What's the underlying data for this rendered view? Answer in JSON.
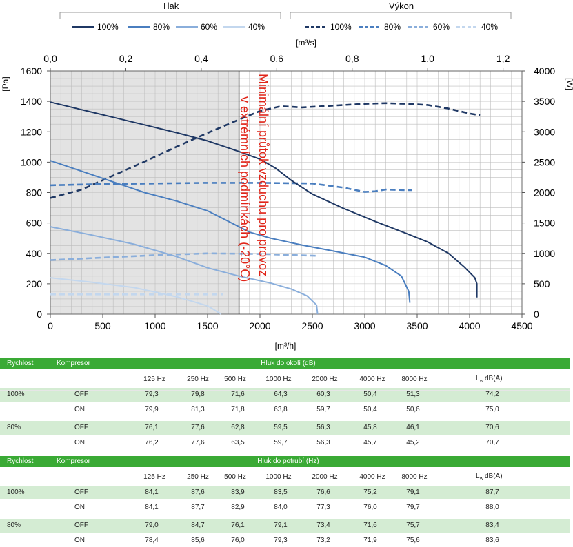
{
  "colors": {
    "c100": "#1f3864",
    "c80": "#4a7ebf",
    "c60": "#8aaedb",
    "c40": "#c3d7ee",
    "note": "#e02418",
    "green": "#3aaa35",
    "band": "#d4ecd3",
    "shade": "#e3e3e3"
  },
  "legend": {
    "tlak": {
      "title": "Tlak",
      "items": [
        "100%",
        "80%",
        "60%",
        "40%"
      ]
    },
    "vykon": {
      "title": "Výkon",
      "items": [
        "100%",
        "80%",
        "60%",
        "40%"
      ]
    }
  },
  "chart_data": {
    "type": "line",
    "x_bottom": {
      "label": "[m³/h]",
      "range": [
        0,
        4500
      ],
      "ticks": [
        "0",
        "500",
        "1000",
        "1500",
        "2000",
        "2500",
        "3000",
        "3500",
        "4000",
        "4500"
      ]
    },
    "x_top": {
      "label": "[m³/s]",
      "range": [
        0,
        1.25
      ],
      "ticks": [
        "0,0",
        "0,2",
        "0,4",
        "0,6",
        "0,8",
        "1,0",
        "1,2"
      ]
    },
    "y_left": {
      "label": "[Pa]",
      "range": [
        0,
        1600
      ],
      "ticks": [
        "0",
        "200",
        "400",
        "600",
        "800",
        "1000",
        "1200",
        "1400",
        "1600"
      ]
    },
    "y_right": {
      "label": "[W]",
      "range": [
        0,
        4000
      ],
      "ticks": [
        "0",
        "500",
        "1000",
        "1500",
        "2000",
        "2500",
        "3000",
        "3500",
        "4000"
      ]
    },
    "grid": true,
    "shaded_region_x": [
      0,
      1800
    ],
    "annotation": "Minimální průtok vzduchu pro provoz v extrémních podmínkách (-20°C)",
    "pressure_series": [
      {
        "name": "100%",
        "points": [
          [
            0,
            1395
          ],
          [
            300,
            1345
          ],
          [
            600,
            1295
          ],
          [
            900,
            1245
          ],
          [
            1200,
            1195
          ],
          [
            1500,
            1140
          ],
          [
            1800,
            1070
          ],
          [
            2000,
            1020
          ],
          [
            2150,
            960
          ],
          [
            2300,
            880
          ],
          [
            2500,
            790
          ],
          [
            2800,
            695
          ],
          [
            3100,
            610
          ],
          [
            3400,
            530
          ],
          [
            3600,
            475
          ],
          [
            3800,
            400
          ],
          [
            3950,
            310
          ],
          [
            4050,
            240
          ],
          [
            4070,
            200
          ],
          [
            4070,
            110
          ]
        ]
      },
      {
        "name": "80%",
        "points": [
          [
            0,
            1010
          ],
          [
            300,
            940
          ],
          [
            600,
            870
          ],
          [
            900,
            800
          ],
          [
            1200,
            745
          ],
          [
            1500,
            680
          ],
          [
            1700,
            610
          ],
          [
            1900,
            540
          ],
          [
            2100,
            500
          ],
          [
            2400,
            455
          ],
          [
            2700,
            415
          ],
          [
            3000,
            375
          ],
          [
            3200,
            320
          ],
          [
            3350,
            250
          ],
          [
            3420,
            150
          ],
          [
            3430,
            75
          ]
        ]
      },
      {
        "name": "60%",
        "points": [
          [
            0,
            575
          ],
          [
            400,
            520
          ],
          [
            800,
            460
          ],
          [
            1200,
            380
          ],
          [
            1500,
            305
          ],
          [
            1800,
            250
          ],
          [
            2100,
            205
          ],
          [
            2300,
            165
          ],
          [
            2450,
            120
          ],
          [
            2540,
            60
          ],
          [
            2550,
            0
          ]
        ]
      },
      {
        "name": "40%",
        "points": [
          [
            0,
            240
          ],
          [
            400,
            210
          ],
          [
            800,
            175
          ],
          [
            1200,
            115
          ],
          [
            1500,
            55
          ],
          [
            1630,
            0
          ]
        ]
      }
    ],
    "power_series": [
      {
        "name": "100%",
        "points": [
          [
            0,
            1910
          ],
          [
            300,
            2050
          ],
          [
            600,
            2280
          ],
          [
            900,
            2510
          ],
          [
            1200,
            2750
          ],
          [
            1500,
            2980
          ],
          [
            1800,
            3200
          ],
          [
            2000,
            3340
          ],
          [
            2200,
            3420
          ],
          [
            2400,
            3400
          ],
          [
            2600,
            3420
          ],
          [
            2800,
            3440
          ],
          [
            3000,
            3460
          ],
          [
            3200,
            3470
          ],
          [
            3400,
            3460
          ],
          [
            3600,
            3440
          ],
          [
            3800,
            3380
          ],
          [
            4000,
            3300
          ],
          [
            4100,
            3270
          ]
        ]
      },
      {
        "name": "80%",
        "points": [
          [
            0,
            2120
          ],
          [
            500,
            2140
          ],
          [
            1000,
            2150
          ],
          [
            1500,
            2160
          ],
          [
            2000,
            2160
          ],
          [
            2500,
            2150
          ],
          [
            2800,
            2080
          ],
          [
            3000,
            2010
          ],
          [
            3100,
            2020
          ],
          [
            3200,
            2050
          ],
          [
            3400,
            2040
          ],
          [
            3450,
            2040
          ]
        ]
      },
      {
        "name": "60%",
        "points": [
          [
            0,
            890
          ],
          [
            500,
            930
          ],
          [
            1000,
            970
          ],
          [
            1500,
            1000
          ],
          [
            2000,
            990
          ],
          [
            2550,
            960
          ]
        ]
      },
      {
        "name": "40%",
        "points": [
          [
            0,
            325
          ],
          [
            500,
            325
          ],
          [
            1000,
            325
          ],
          [
            1650,
            325
          ]
        ]
      }
    ]
  },
  "table1": {
    "col_rychlost": "Rychlost",
    "col_kompresor": "Kompresor",
    "title": "Hluk do okolí (dB)",
    "bands": [
      "125 Hz",
      "250 Hz",
      "500 Hz",
      "1000 Hz",
      "2000 Hz",
      "4000 Hz",
      "8000 Hz"
    ],
    "lw_main": "L",
    "lw_sub": "w",
    "lw_tail": "dB(A)",
    "rows": [
      {
        "speed": "100%",
        "komp": "OFF",
        "vals": [
          "79,3",
          "79,8",
          "71,6",
          "64,3",
          "60,3",
          "50,4",
          "51,3"
        ],
        "lw": "74,2"
      },
      {
        "speed": "",
        "komp": "ON",
        "vals": [
          "79,9",
          "81,3",
          "71,8",
          "63,8",
          "59,7",
          "50,4",
          "50,6"
        ],
        "lw": "75,0"
      },
      {
        "speed": "80%",
        "komp": "OFF",
        "vals": [
          "76,1",
          "77,6",
          "62,8",
          "59,5",
          "56,3",
          "45,8",
          "46,1"
        ],
        "lw": "70,6"
      },
      {
        "speed": "",
        "komp": "ON",
        "vals": [
          "76,2",
          "77,6",
          "63,5",
          "59,7",
          "56,3",
          "45,7",
          "45,2"
        ],
        "lw": "70,7"
      }
    ]
  },
  "table2": {
    "col_rychlost": "Rychlost",
    "col_kompresor": "Kompresor",
    "title": "Hluk do potrubí (Hz)",
    "bands": [
      "125 Hz",
      "250 Hz",
      "500 Hz",
      "1000 Hz",
      "2000 Hz",
      "4000 Hz",
      "8000 Hz"
    ],
    "lw_main": "L",
    "lw_sub": "w",
    "lw_tail": "dB(A)",
    "rows": [
      {
        "speed": "100%",
        "komp": "OFF",
        "vals": [
          "84,1",
          "87,6",
          "83,9",
          "83,5",
          "76,6",
          "75,2",
          "79,1"
        ],
        "lw": "87,7"
      },
      {
        "speed": "",
        "komp": "ON",
        "vals": [
          "84,1",
          "87,7",
          "82,9",
          "84,0",
          "77,3",
          "76,0",
          "79,7"
        ],
        "lw": "88,0"
      },
      {
        "speed": "80%",
        "komp": "OFF",
        "vals": [
          "79,0",
          "84,7",
          "76,1",
          "79,1",
          "73,4",
          "71,6",
          "75,7"
        ],
        "lw": "83,4"
      },
      {
        "speed": "",
        "komp": "ON",
        "vals": [
          "78,4",
          "85,6",
          "76,0",
          "79,3",
          "73,2",
          "71,9",
          "75,6"
        ],
        "lw": "83,6"
      }
    ]
  }
}
